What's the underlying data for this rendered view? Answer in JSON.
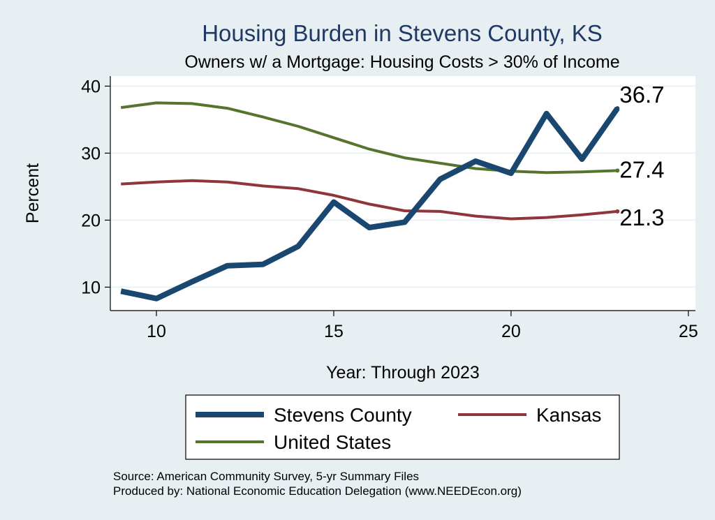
{
  "chart_data": {
    "type": "line",
    "title": "Housing Burden in Stevens County, KS",
    "subtitle": "Owners w/ a Mortgage: Housing Costs > 30% of Income",
    "xlabel": "Year: Through 2023",
    "ylabel": "Percent",
    "xlim": [
      8.7,
      25.2
    ],
    "ylim": [
      6.5,
      41.5
    ],
    "xticks": [
      10,
      15,
      20,
      25
    ],
    "yticks": [
      10,
      20,
      30,
      40
    ],
    "grid": true,
    "legend_position": "bottom",
    "series": [
      {
        "name": "Stevens County",
        "color": "#1a476f",
        "x": [
          9,
          10,
          11,
          12,
          13,
          14,
          15,
          16,
          17,
          18,
          19,
          20,
          21,
          22,
          23
        ],
        "values": [
          9.4,
          8.3,
          10.8,
          13.2,
          13.4,
          16.1,
          22.7,
          18.9,
          19.7,
          26.1,
          28.8,
          27.0,
          35.9,
          29.1,
          36.7
        ],
        "end_label": "36.7"
      },
      {
        "name": "Kansas",
        "color": "#90353b",
        "x": [
          9,
          10,
          11,
          12,
          13,
          14,
          15,
          16,
          17,
          18,
          19,
          20,
          21,
          22,
          23
        ],
        "values": [
          25.4,
          25.7,
          25.9,
          25.7,
          25.1,
          24.7,
          23.7,
          22.4,
          21.4,
          21.3,
          20.6,
          20.2,
          20.4,
          20.8,
          21.3
        ],
        "end_label": "21.3"
      },
      {
        "name": "United States",
        "color": "#55752f",
        "x": [
          9,
          10,
          11,
          12,
          13,
          14,
          15,
          16,
          17,
          18,
          19,
          20,
          21,
          22,
          23
        ],
        "values": [
          36.8,
          37.5,
          37.4,
          36.7,
          35.4,
          34.0,
          32.3,
          30.6,
          29.3,
          28.5,
          27.7,
          27.3,
          27.1,
          27.2,
          27.4
        ],
        "end_label": "27.4"
      }
    ],
    "notes": [
      "Source: American Community Survey, 5-yr Summary Files",
      "Produced by: National Economic Education Delegation (www.NEEDEcon.org)"
    ]
  }
}
